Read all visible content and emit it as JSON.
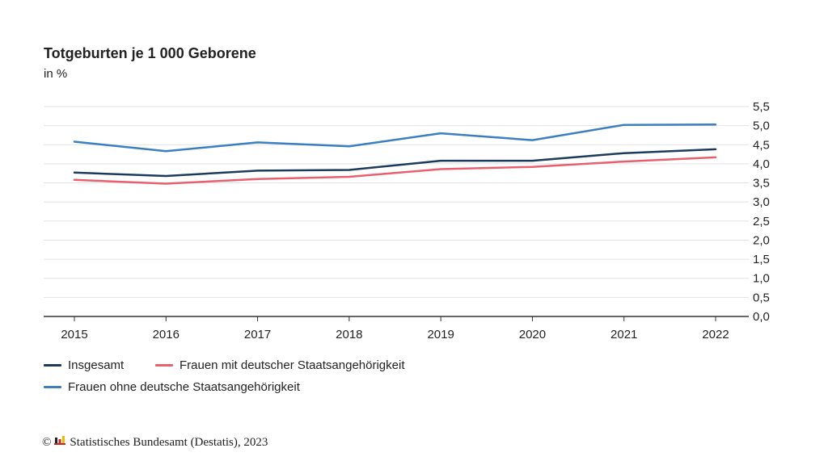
{
  "header": {
    "title": "Totgeburten je 1 000 Geborene",
    "subtitle": "in %"
  },
  "footer": {
    "copyright_symbol": "©",
    "logo_icon": "destatis-logo-icon",
    "source": "Statistisches Bundesamt (Destatis), 2023"
  },
  "chart_data": {
    "type": "line",
    "title": "Totgeburten je 1 000 Geborene",
    "subtitle": "in %",
    "x": [
      "2015",
      "2016",
      "2017",
      "2018",
      "2019",
      "2020",
      "2021",
      "2022"
    ],
    "ylim": [
      0,
      5.5
    ],
    "yticks": [
      "0,0",
      "0,5",
      "1,0",
      "1,5",
      "2,0",
      "2,5",
      "3,0",
      "3,5",
      "4,0",
      "4,5",
      "5,0",
      "5,5"
    ],
    "y_axis_position": "right",
    "grid": true,
    "legend_position": "bottom-left",
    "series": [
      {
        "name": "Insgesamt",
        "color": "#1b3a5c",
        "values": [
          3.77,
          3.68,
          3.82,
          3.84,
          4.08,
          4.08,
          4.28,
          4.38
        ]
      },
      {
        "name": "Frauen mit deutscher Staatsangehörigkeit",
        "color": "#e8606e",
        "values": [
          3.58,
          3.48,
          3.6,
          3.66,
          3.86,
          3.92,
          4.06,
          4.17
        ]
      },
      {
        "name": "Frauen ohne deutsche Staatsangehörigkeit",
        "color": "#3a7fc1",
        "values": [
          4.58,
          4.33,
          4.56,
          4.46,
          4.8,
          4.62,
          5.02,
          5.03
        ]
      }
    ]
  }
}
